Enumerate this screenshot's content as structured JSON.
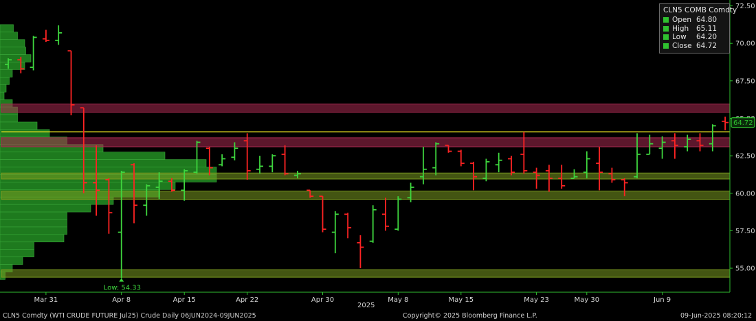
{
  "chart_data": {
    "type": "ohlc",
    "title": "",
    "ylim": [
      53.4,
      72.8
    ],
    "y_ticks": [
      55.0,
      57.5,
      60.0,
      62.5,
      65.0,
      67.5,
      70.0,
      72.5
    ],
    "y_tick_labels": [
      "55.00",
      "57.50",
      "60.00",
      "62.50",
      "65.00",
      "67.50",
      "70.00",
      "72.50"
    ],
    "x_tick_labels": [
      {
        "label": "Mar 31",
        "index": 3
      },
      {
        "label": "Apr 8",
        "index": 9
      },
      {
        "label": "Apr 15",
        "index": 14
      },
      {
        "label": "Apr 22",
        "index": 19
      },
      {
        "label": "Apr 30",
        "index": 25
      },
      {
        "label": "May 8",
        "index": 31
      },
      {
        "label": "May 15",
        "index": 36
      },
      {
        "label": "May 23",
        "index": 42
      },
      {
        "label": "May 30",
        "index": 46
      },
      {
        "label": "Jun 9",
        "index": 52
      }
    ],
    "year_label": "2025",
    "grid": false,
    "series": [
      {
        "values": [
          {
            "o": 68.6,
            "h": 69.0,
            "l": 68.3,
            "c": 68.9
          },
          {
            "o": 68.9,
            "h": 69.1,
            "l": 68.0,
            "c": 68.3
          },
          {
            "o": 68.4,
            "h": 70.5,
            "l": 68.2,
            "c": 70.4
          },
          {
            "o": 70.3,
            "h": 70.9,
            "l": 70.1,
            "c": 70.2
          },
          {
            "o": 70.2,
            "h": 71.2,
            "l": 69.9,
            "c": 70.7
          },
          {
            "o": 69.5,
            "h": 69.5,
            "l": 65.2,
            "c": 65.9
          },
          {
            "o": 65.7,
            "h": 65.7,
            "l": 60.0,
            "c": 60.7
          },
          {
            "o": 60.7,
            "h": 63.2,
            "l": 58.5,
            "c": 60.2
          },
          {
            "o": 60.9,
            "h": 61.0,
            "l": 57.3,
            "c": 58.7
          },
          {
            "o": 57.4,
            "h": 61.5,
            "l": 54.33,
            "c": 61.4
          },
          {
            "o": 61.9,
            "h": 62.0,
            "l": 58.0,
            "c": 59.2
          },
          {
            "o": 59.2,
            "h": 60.6,
            "l": 58.5,
            "c": 60.5
          },
          {
            "o": 60.4,
            "h": 61.4,
            "l": 59.6,
            "c": 60.8
          },
          {
            "o": 60.8,
            "h": 61.0,
            "l": 60.1,
            "c": 60.2
          },
          {
            "o": 60.2,
            "h": 61.6,
            "l": 59.5,
            "c": 61.5
          },
          {
            "o": 61.4,
            "h": 63.5,
            "l": 61.3,
            "c": 63.4
          },
          {
            "o": 63.0,
            "h": 63.1,
            "l": 61.2,
            "c": 61.7
          },
          {
            "o": 61.9,
            "h": 62.6,
            "l": 61.8,
            "c": 62.3
          },
          {
            "o": 62.4,
            "h": 63.4,
            "l": 62.2,
            "c": 63.0
          },
          {
            "o": 63.5,
            "h": 64.0,
            "l": 60.9,
            "c": 61.5
          },
          {
            "o": 61.6,
            "h": 62.5,
            "l": 61.3,
            "c": 61.8
          },
          {
            "o": 61.8,
            "h": 62.6,
            "l": 61.4,
            "c": 62.5
          },
          {
            "o": 62.6,
            "h": 63.2,
            "l": 61.2,
            "c": 61.3
          },
          {
            "o": 61.2,
            "h": 61.5,
            "l": 61.0,
            "c": 61.3
          },
          {
            "o": 60.2,
            "h": 60.2,
            "l": 59.7,
            "c": 59.8
          },
          {
            "o": 59.8,
            "h": 59.8,
            "l": 57.4,
            "c": 57.6
          },
          {
            "o": 57.4,
            "h": 58.8,
            "l": 56.0,
            "c": 58.6
          },
          {
            "o": 58.6,
            "h": 58.7,
            "l": 57.0,
            "c": 57.7
          },
          {
            "o": 56.7,
            "h": 57.2,
            "l": 55.0,
            "c": 56.4
          },
          {
            "o": 56.8,
            "h": 59.2,
            "l": 56.7,
            "c": 58.9
          },
          {
            "o": 58.6,
            "h": 59.7,
            "l": 57.5,
            "c": 57.8
          },
          {
            "o": 57.6,
            "h": 59.8,
            "l": 57.5,
            "c": 59.6
          },
          {
            "o": 59.7,
            "h": 60.7,
            "l": 59.4,
            "c": 60.4
          },
          {
            "o": 61.1,
            "h": 63.1,
            "l": 60.6,
            "c": 61.6
          },
          {
            "o": 61.7,
            "h": 63.4,
            "l": 61.2,
            "c": 63.3
          },
          {
            "o": 63.2,
            "h": 63.2,
            "l": 62.7,
            "c": 62.8
          },
          {
            "o": 62.8,
            "h": 62.9,
            "l": 61.8,
            "c": 62.0
          },
          {
            "o": 62.0,
            "h": 62.1,
            "l": 60.2,
            "c": 61.1
          },
          {
            "o": 61.0,
            "h": 62.3,
            "l": 60.8,
            "c": 62.1
          },
          {
            "o": 61.9,
            "h": 62.7,
            "l": 61.4,
            "c": 62.2
          },
          {
            "o": 62.3,
            "h": 62.5,
            "l": 61.2,
            "c": 61.4
          },
          {
            "o": 62.6,
            "h": 64.1,
            "l": 61.3,
            "c": 61.5
          },
          {
            "o": 61.4,
            "h": 61.7,
            "l": 60.3,
            "c": 61.2
          },
          {
            "o": 61.5,
            "h": 61.9,
            "l": 60.1,
            "c": 61.0
          },
          {
            "o": 61.0,
            "h": 61.9,
            "l": 60.3,
            "c": 60.5
          },
          {
            "o": 61.0,
            "h": 61.6,
            "l": 61.0,
            "c": 61.1
          },
          {
            "o": 61.4,
            "h": 62.8,
            "l": 61.0,
            "c": 62.3
          },
          {
            "o": 62.0,
            "h": 63.1,
            "l": 60.2,
            "c": 61.4
          },
          {
            "o": 61.3,
            "h": 61.7,
            "l": 60.7,
            "c": 60.9
          },
          {
            "o": 60.9,
            "h": 61.0,
            "l": 59.8,
            "c": 60.7
          },
          {
            "o": 61.1,
            "h": 64.0,
            "l": 61.0,
            "c": 62.6
          },
          {
            "o": 62.6,
            "h": 63.9,
            "l": 62.6,
            "c": 63.3
          },
          {
            "o": 63.0,
            "h": 63.8,
            "l": 62.3,
            "c": 63.4
          },
          {
            "o": 63.5,
            "h": 64.0,
            "l": 62.3,
            "c": 63.2
          },
          {
            "o": 63.1,
            "h": 63.9,
            "l": 62.8,
            "c": 63.6
          },
          {
            "o": 63.5,
            "h": 64.0,
            "l": 62.8,
            "c": 63.2
          },
          {
            "o": 63.3,
            "h": 64.6,
            "l": 62.8,
            "c": 64.5
          },
          {
            "o": 64.8,
            "h": 65.11,
            "l": 64.2,
            "c": 64.72
          }
        ]
      }
    ],
    "last_price": 64.72,
    "last_price_label": "64.72",
    "low_label": "Low: 54.33",
    "low_value": 54.33,
    "low_index": 9,
    "horizontal_lines": [
      {
        "y": 64.1,
        "color": "#e8e020"
      }
    ],
    "zones": [
      {
        "y0": 65.4,
        "y1": 65.95,
        "color": "#a82a50"
      },
      {
        "y0": 63.1,
        "y1": 63.7,
        "color": "#a82a50"
      },
      {
        "y0": 60.95,
        "y1": 61.35,
        "color": "#7a9a20"
      },
      {
        "y0": 59.6,
        "y1": 60.15,
        "color": "#7a9a20"
      },
      {
        "y0": 54.4,
        "y1": 54.9,
        "color": "#7a9a20"
      }
    ],
    "volume_profile": [
      {
        "price": 71.0,
        "size": 0.13
      },
      {
        "price": 70.5,
        "size": 0.17
      },
      {
        "price": 70.0,
        "size": 0.24
      },
      {
        "price": 69.5,
        "size": 0.25
      },
      {
        "price": 69.0,
        "size": 0.3
      },
      {
        "price": 68.5,
        "size": 0.24
      },
      {
        "price": 68.0,
        "size": 0.12
      },
      {
        "price": 67.5,
        "size": 0.09
      },
      {
        "price": 67.0,
        "size": 0.06
      },
      {
        "price": 66.5,
        "size": 0.04
      },
      {
        "price": 66.0,
        "size": 0.12
      },
      {
        "price": 65.5,
        "size": 0.17
      },
      {
        "price": 65.0,
        "size": 0.17
      },
      {
        "price": 64.5,
        "size": 0.36
      },
      {
        "price": 64.0,
        "size": 0.48
      },
      {
        "price": 63.5,
        "size": 0.65
      },
      {
        "price": 63.0,
        "size": 1.0
      },
      {
        "price": 62.5,
        "size": 1.6
      },
      {
        "price": 62.0,
        "size": 2.0
      },
      {
        "price": 61.5,
        "size": 2.1
      },
      {
        "price": 61.0,
        "size": 2.1
      },
      {
        "price": 60.5,
        "size": 1.7
      },
      {
        "price": 60.0,
        "size": 1.55
      },
      {
        "price": 59.5,
        "size": 1.1
      },
      {
        "price": 59.0,
        "size": 0.88
      },
      {
        "price": 58.5,
        "size": 0.65
      },
      {
        "price": 58.0,
        "size": 0.65
      },
      {
        "price": 57.5,
        "size": 0.65
      },
      {
        "price": 57.0,
        "size": 0.62
      },
      {
        "price": 56.5,
        "size": 0.33
      },
      {
        "price": 56.0,
        "size": 0.33
      },
      {
        "price": 55.5,
        "size": 0.22
      },
      {
        "price": 55.0,
        "size": 0.12
      },
      {
        "price": 54.5,
        "size": 0.05
      }
    ],
    "colors": {
      "up": "#3ed63e",
      "down": "#ff2323",
      "axis": "#2fc02f",
      "profile": "#1e7a1e",
      "profile_edge": "#3aa83a",
      "last_price_box": "#2fc02f"
    }
  },
  "legend": {
    "title": "CLN5 COMB Comdty",
    "rows": [
      {
        "key": "Open",
        "value": "64.80"
      },
      {
        "key": "High",
        "value": "65.11"
      },
      {
        "key": "Low",
        "value": "64.20"
      },
      {
        "key": "Close",
        "value": "64.72"
      }
    ]
  },
  "footer": {
    "left": "CLN5 Comdty (WTI CRUDE FUTURE  Jul25) Crude  Daily 06JUN2024-09JUN2025",
    "center": "Copyright© 2025 Bloomberg Finance L.P.",
    "right": "09-Jun-2025 08:20:12"
  }
}
